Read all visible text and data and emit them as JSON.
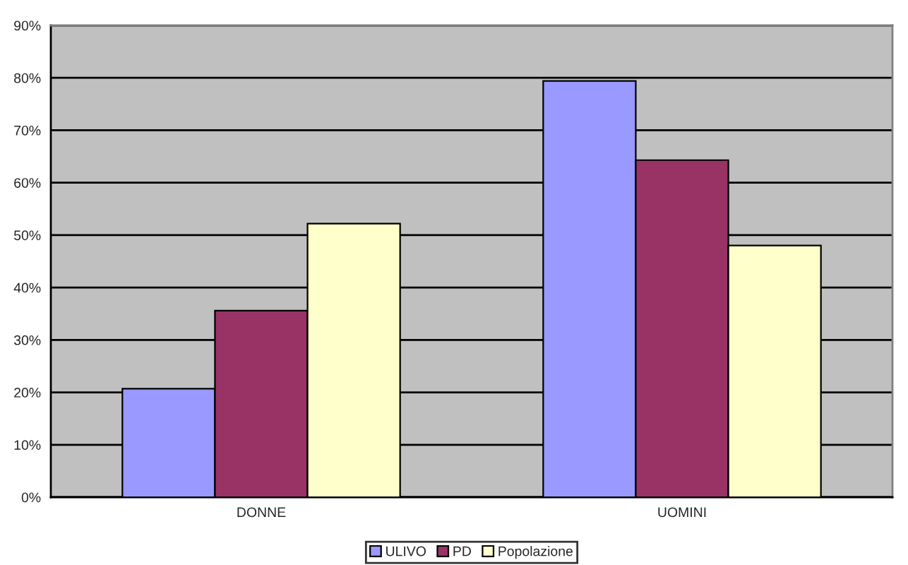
{
  "chart_data": {
    "type": "bar",
    "categories": [
      "DONNE",
      "UOMINI"
    ],
    "series": [
      {
        "name": "ULIVO",
        "color": "#9999ff",
        "values": [
          20.7,
          79.4
        ]
      },
      {
        "name": "PD",
        "color": "#993366",
        "values": [
          35.6,
          64.3
        ]
      },
      {
        "name": "Popolazione",
        "color": "#ffffcc",
        "values": [
          52.2,
          48.0
        ]
      }
    ],
    "ylim": [
      0,
      90
    ],
    "yticks": [
      {
        "value": 0,
        "label": "0%"
      },
      {
        "value": 10,
        "label": "10%"
      },
      {
        "value": 20,
        "label": "20%"
      },
      {
        "value": 30,
        "label": "30%"
      },
      {
        "value": 40,
        "label": "40%"
      },
      {
        "value": 50,
        "label": "50%"
      },
      {
        "value": 60,
        "label": "60%"
      },
      {
        "value": 70,
        "label": "70%"
      },
      {
        "value": 80,
        "label": "80%"
      },
      {
        "value": 90,
        "label": "90%"
      }
    ],
    "grid": "y",
    "legend": "bottom"
  }
}
